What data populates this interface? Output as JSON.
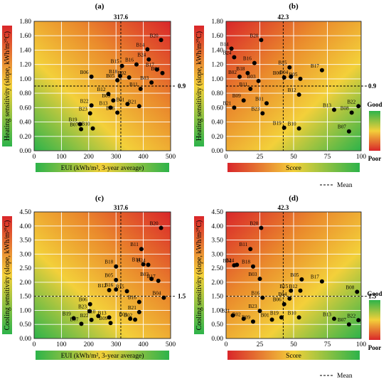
{
  "chart_data": [
    {
      "type": "scatter",
      "panel": "(a)",
      "mean_x_label": "317.6",
      "mean_y_label": "0.9",
      "mean_x": 317.6,
      "mean_y": 0.9,
      "xlabel": "EUI (kWh/m², 3-year average)",
      "ylabel": "Heating sensitivity (slope, kWh/m²°C)",
      "xlim": [
        0,
        500
      ],
      "ylim": [
        0,
        1.8
      ],
      "xticks": [
        "0",
        "100",
        "200",
        "300",
        "400",
        "500"
      ],
      "yticks": [
        "0.00",
        "0.20",
        "0.40",
        "0.60",
        "0.80",
        "1.00",
        "1.20",
        "1.40",
        "1.60",
        "1.80"
      ],
      "points": [
        {
          "id": "B20",
          "x": 465,
          "y": 1.54
        },
        {
          "id": "B14",
          "x": 415,
          "y": 1.41
        },
        {
          "id": "B24",
          "x": 420,
          "y": 1.27
        },
        {
          "id": "B15",
          "x": 322,
          "y": 1.18
        },
        {
          "id": "B16",
          "x": 375,
          "y": 1.2
        },
        {
          "id": "B17",
          "x": 450,
          "y": 1.13
        },
        {
          "id": "B04",
          "x": 470,
          "y": 1.08
        },
        {
          "id": "B06",
          "x": 210,
          "y": 1.03
        },
        {
          "id": "B02",
          "x": 348,
          "y": 1.02
        },
        {
          "id": "B05",
          "x": 305,
          "y": 0.98
        },
        {
          "id": "B18",
          "x": 315,
          "y": 1.04
        },
        {
          "id": "B03",
          "x": 430,
          "y": 0.95
        },
        {
          "id": "B11",
          "x": 390,
          "y": 0.86
        },
        {
          "id": "B12",
          "x": 272,
          "y": 0.79
        },
        {
          "id": "B09",
          "x": 290,
          "y": 0.7
        },
        {
          "id": "B22",
          "x": 210,
          "y": 0.63
        },
        {
          "id": "B01",
          "x": 342,
          "y": 0.65
        },
        {
          "id": "B13",
          "x": 280,
          "y": 0.6
        },
        {
          "id": "B21",
          "x": 385,
          "y": 0.62
        },
        {
          "id": "B23",
          "x": 205,
          "y": 0.52
        },
        {
          "id": "B08",
          "x": 305,
          "y": 0.53
        },
        {
          "id": "B19",
          "x": 168,
          "y": 0.37
        },
        {
          "id": "B10",
          "x": 215,
          "y": 0.31
        },
        {
          "id": "B07",
          "x": 172,
          "y": 0.3
        }
      ]
    },
    {
      "type": "scatter",
      "panel": "(b)",
      "mean_x_label": "42.3",
      "mean_y_label": "0.9",
      "mean_x": 42.3,
      "mean_y": 0.9,
      "xlabel": "Score",
      "ylabel": "Heating sensitivity (slope, kWh/m²°C)",
      "xlim": [
        0,
        100
      ],
      "ylim": [
        0,
        1.8
      ],
      "xticks": [
        "0",
        "25",
        "50",
        "75",
        "100"
      ],
      "yticks": [
        "0.00",
        "0.20",
        "0.40",
        "0.60",
        "0.80",
        "1.00",
        "1.20",
        "1.40",
        "1.60",
        "1.80"
      ],
      "points": [
        {
          "id": "B20",
          "x": 26,
          "y": 1.54
        },
        {
          "id": "B14",
          "x": 4,
          "y": 1.42
        },
        {
          "id": "B24",
          "x": 6,
          "y": 1.3
        },
        {
          "id": "B16",
          "x": 21,
          "y": 1.22
        },
        {
          "id": "B15",
          "x": 47,
          "y": 1.16
        },
        {
          "id": "B17",
          "x": 71,
          "y": 1.12
        },
        {
          "id": "B18",
          "x": 16,
          "y": 1.08
        },
        {
          "id": "B02",
          "x": 10,
          "y": 1.03
        },
        {
          "id": "B03",
          "x": 24,
          "y": 0.97
        },
        {
          "id": "B06",
          "x": 43,
          "y": 1.02
        },
        {
          "id": "B04",
          "x": 48,
          "y": 1.03
        },
        {
          "id": "B05",
          "x": 55,
          "y": 1.0
        },
        {
          "id": "B11",
          "x": 18,
          "y": 0.86
        },
        {
          "id": "B12",
          "x": 54,
          "y": 0.78
        },
        {
          "id": "B09",
          "x": 13,
          "y": 0.7
        },
        {
          "id": "B01",
          "x": 30,
          "y": 0.66
        },
        {
          "id": "B21",
          "x": 6,
          "y": 0.6
        },
        {
          "id": "B23",
          "x": 27,
          "y": 0.52
        },
        {
          "id": "B13",
          "x": 80,
          "y": 0.57
        },
        {
          "id": "B22",
          "x": 98,
          "y": 0.62
        },
        {
          "id": "B08",
          "x": 93,
          "y": 0.53
        },
        {
          "id": "B19",
          "x": 43,
          "y": 0.32
        },
        {
          "id": "B10",
          "x": 54,
          "y": 0.31
        },
        {
          "id": "B07",
          "x": 91,
          "y": 0.27
        }
      ]
    },
    {
      "type": "scatter",
      "panel": "(c)",
      "mean_x_label": "317.6",
      "mean_y_label": "1.5",
      "mean_x": 317.6,
      "mean_y": 1.5,
      "xlabel": "EUI (kWh/m², 3-year average)",
      "ylabel": "Cooling sensitivity (slope, kWh/m²°C)",
      "xlim": [
        0,
        500
      ],
      "ylim": [
        0,
        4.5
      ],
      "xticks": [
        "0",
        "100",
        "200",
        "300",
        "400",
        "500"
      ],
      "yticks": [
        "0.00",
        "0.50",
        "1.00",
        "1.50",
        "2.00",
        "2.50",
        "3.00",
        "3.50",
        "4.00",
        "4.50"
      ],
      "points": [
        {
          "id": "B20",
          "x": 465,
          "y": 3.93
        },
        {
          "id": "B11",
          "x": 393,
          "y": 3.18
        },
        {
          "id": "B14",
          "x": 400,
          "y": 2.64
        },
        {
          "id": "B24",
          "x": 418,
          "y": 2.62
        },
        {
          "id": "B18",
          "x": 300,
          "y": 2.56
        },
        {
          "id": "B03",
          "x": 430,
          "y": 2.12
        },
        {
          "id": "B17",
          "x": 455,
          "y": 2.05
        },
        {
          "id": "B05",
          "x": 300,
          "y": 2.08
        },
        {
          "id": "B12",
          "x": 275,
          "y": 1.72
        },
        {
          "id": "B16",
          "x": 300,
          "y": 1.74
        },
        {
          "id": "B15",
          "x": 340,
          "y": 1.68
        },
        {
          "id": "B04",
          "x": 475,
          "y": 1.45
        },
        {
          "id": "B16",
          "x": 385,
          "y": 1.3
        },
        {
          "id": "B06",
          "x": 205,
          "y": 1.22
        },
        {
          "id": "B23",
          "x": 203,
          "y": 0.97
        },
        {
          "id": "B21",
          "x": 385,
          "y": 0.94
        },
        {
          "id": "B10",
          "x": 235,
          "y": 0.8
        },
        {
          "id": "B13",
          "x": 275,
          "y": 0.75
        },
        {
          "id": "B01",
          "x": 352,
          "y": 0.7
        },
        {
          "id": "B19",
          "x": 145,
          "y": 0.72
        },
        {
          "id": "B22",
          "x": 210,
          "y": 0.66
        },
        {
          "id": "B09",
          "x": 280,
          "y": 0.55
        },
        {
          "id": "B02",
          "x": 370,
          "y": 0.67
        },
        {
          "id": "B07",
          "x": 173,
          "y": 0.52
        }
      ]
    },
    {
      "type": "scatter",
      "panel": "(d)",
      "mean_x_label": "42.3",
      "mean_y_label": "1.5",
      "mean_x": 42.3,
      "mean_y": 1.5,
      "xlabel": "Score",
      "ylabel": "Cooling sensitivity (slope, kWh/m²°C)",
      "xlim": [
        0,
        100
      ],
      "ylim": [
        0,
        4.5
      ],
      "xticks": [
        "0",
        "25",
        "50",
        "75",
        "100"
      ],
      "yticks": [
        "0.00",
        "0.50",
        "1.00",
        "1.50",
        "2.00",
        "2.50",
        "3.00",
        "3.50",
        "4.00",
        "4.50"
      ],
      "points": [
        {
          "id": "B20",
          "x": 26,
          "y": 3.93
        },
        {
          "id": "B11",
          "x": 18,
          "y": 3.18
        },
        {
          "id": "B24",
          "x": 8,
          "y": 2.62
        },
        {
          "id": "B14",
          "x": 6,
          "y": 2.6
        },
        {
          "id": "B18",
          "x": 20,
          "y": 2.56
        },
        {
          "id": "B03",
          "x": 25,
          "y": 2.12
        },
        {
          "id": "B05",
          "x": 56,
          "y": 2.1
        },
        {
          "id": "B17",
          "x": 71,
          "y": 2.03
        },
        {
          "id": "B08",
          "x": 97,
          "y": 1.66
        },
        {
          "id": "B15",
          "x": 48,
          "y": 1.7
        },
        {
          "id": "B12",
          "x": 55,
          "y": 1.7
        },
        {
          "id": "B04",
          "x": 47,
          "y": 1.42
        },
        {
          "id": "B16",
          "x": 27,
          "y": 1.45
        },
        {
          "id": "B06",
          "x": 43,
          "y": 1.22
        },
        {
          "id": "B23",
          "x": 25,
          "y": 0.98
        },
        {
          "id": "B21",
          "x": 5,
          "y": 0.82
        },
        {
          "id": "B02",
          "x": 13,
          "y": 0.7
        },
        {
          "id": "B19",
          "x": 41,
          "y": 0.75
        },
        {
          "id": "B10",
          "x": 54,
          "y": 0.75
        },
        {
          "id": "B09",
          "x": 20,
          "y": 0.6
        },
        {
          "id": "B01",
          "x": 34,
          "y": 0.67
        },
        {
          "id": "B13",
          "x": 80,
          "y": 0.7
        },
        {
          "id": "B22",
          "x": 98,
          "y": 0.65
        },
        {
          "id": "B07",
          "x": 91,
          "y": 0.5
        }
      ]
    }
  ],
  "legend": {
    "good": "Good",
    "poor": "Poor",
    "mean": "Mean"
  },
  "colors": {
    "green": "#2db34a",
    "yellow": "#f3d03a",
    "orange": "#ea8a2c",
    "red": "#d9262a",
    "grid": "#ffffff",
    "point": "#000000"
  }
}
